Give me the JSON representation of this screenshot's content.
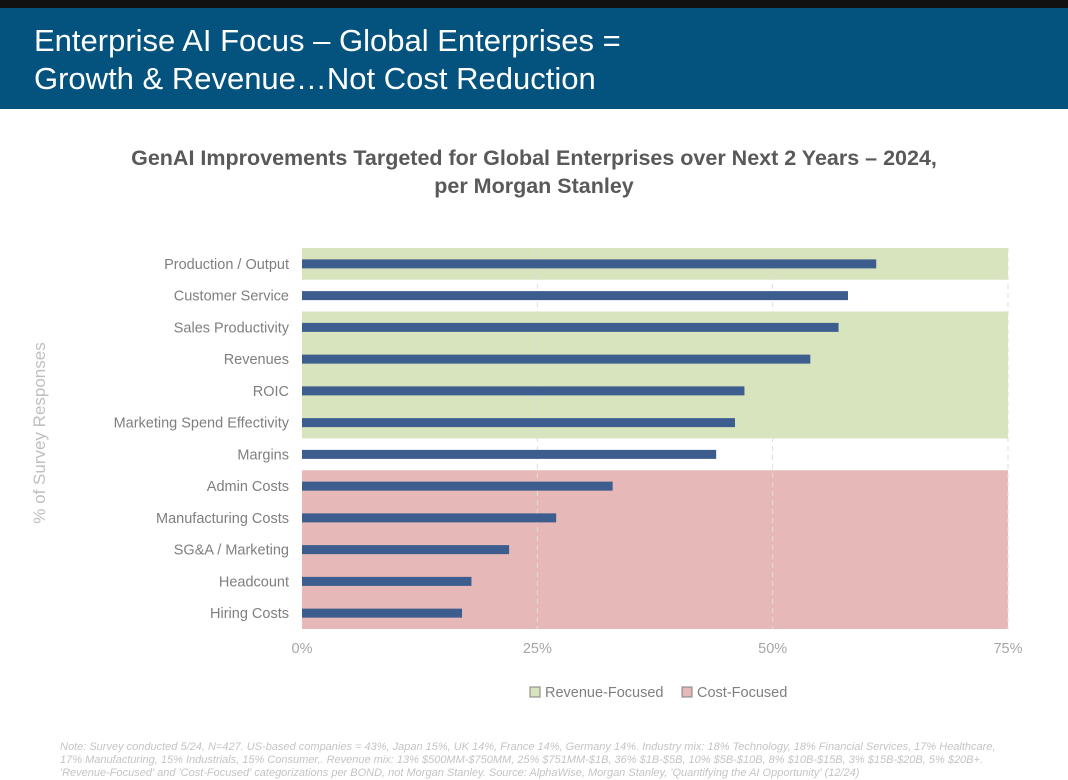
{
  "page": {
    "title_line1": "Enterprise AI Focus – Global Enterprises =",
    "title_line2": "Growth & Revenue…Not Cost Reduction",
    "footnote": "Note: Survey conducted 5/24, N=427. US-based companies = 43%, Japan 15%, UK 14%, France 14%, Germany 14%. Industry mix: 18% Technology, 18% Financial Services, 17% Healthcare, 17% Manufacturing, 15% Industrials, 15% Consumer,. Revenue mix: 13% $500MM-$750MM, 25% $751MM-$1B, 36% $1B-$5B, 10% $5B-$10B, 8% $10B-$15B, 3% $15B-$20B, 5% $20B+. 'Revenue-Focused' and 'Cost-Focused' categorizations per BOND, not Morgan Stanley. Source: AlphaWise, Morgan Stanley, 'Quantifying the AI Opportunity' (12/24)"
  },
  "colors": {
    "header_bg": "#04527e",
    "bar": "#3c5d8d",
    "revenue_band": "#d7e4bd",
    "cost_band": "#e6b8b7",
    "grid": "#d9d9d9"
  },
  "chart_data": {
    "type": "bar",
    "orientation": "horizontal",
    "title_line1": "GenAI Improvements Targeted for Global Enterprises over Next 2 Years – 2024,",
    "title_line2": "per Morgan Stanley",
    "ylabel": "% of Survey Responses",
    "xlim": [
      0,
      75
    ],
    "xticks": [
      0,
      25,
      50,
      75
    ],
    "xtick_labels": [
      "0%",
      "25%",
      "50%",
      "75%"
    ],
    "categories": [
      "Production / Output",
      "Customer Service",
      "Sales Productivity",
      "Revenues",
      "ROIC",
      "Marketing Spend Effectivity",
      "Margins",
      "Admin Costs",
      "Manufacturing Costs",
      "SG&A / Marketing",
      "Headcount",
      "Hiring Costs"
    ],
    "values": [
      61,
      58,
      57,
      54,
      47,
      46,
      44,
      33,
      27,
      22,
      18,
      17
    ],
    "category_groups": [
      "Revenue-Focused",
      "none",
      "Revenue-Focused",
      "Revenue-Focused",
      "Revenue-Focused",
      "Revenue-Focused",
      "none",
      "Cost-Focused",
      "Cost-Focused",
      "Cost-Focused",
      "Cost-Focused",
      "Cost-Focused"
    ],
    "legend": [
      {
        "label": "Revenue-Focused",
        "color": "#d7e4bd"
      },
      {
        "label": "Cost-Focused",
        "color": "#e6b8b7"
      }
    ],
    "legend_position": "bottom-center",
    "grid": true
  }
}
